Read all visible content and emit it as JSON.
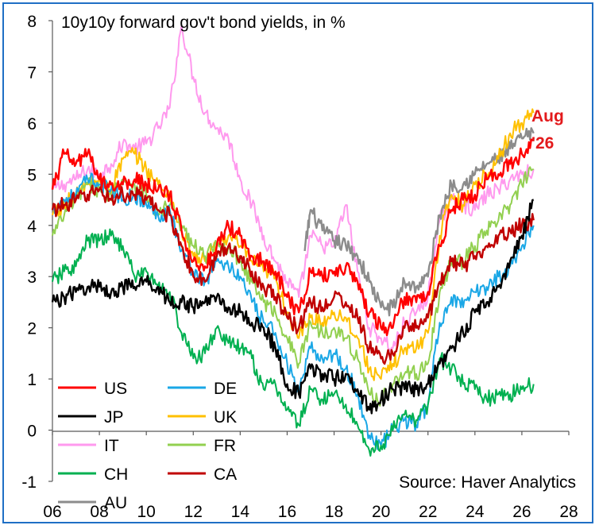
{
  "chart_data": {
    "type": "line",
    "title": "10y10y forward gov't bond yields, in %",
    "xlabel": "",
    "ylabel": "",
    "xlim": [
      2006,
      2028
    ],
    "ylim": [
      -1,
      8
    ],
    "x_ticks": [
      "06",
      "08",
      "10",
      "12",
      "14",
      "16",
      "18",
      "20",
      "22",
      "24",
      "26",
      "28"
    ],
    "y_ticks": [
      "-1",
      "0",
      "1",
      "2",
      "3",
      "4",
      "5",
      "6",
      "7",
      "8"
    ],
    "grid": false,
    "legend_position": "bottom-left",
    "annotation": "Aug '26",
    "annotation_color": "#e31a1c",
    "source": "Source: Haver Analytics",
    "series": [
      {
        "name": "US",
        "color": "#ff0000",
        "width": 2.4,
        "x": [
          2006,
          2006.5,
          2007,
          2007.5,
          2008,
          2008.5,
          2009,
          2009.5,
          2010,
          2010.5,
          2011,
          2011.5,
          2012,
          2012.5,
          2013,
          2013.5,
          2014,
          2014.5,
          2015,
          2015.5,
          2016,
          2016.5,
          2017,
          2017.5,
          2018,
          2018.5,
          2019,
          2019.5,
          2020,
          2020.5,
          2021,
          2021.5,
          2022,
          2022.5,
          2023,
          2023.5,
          2024,
          2024.5,
          2025,
          2025.5,
          2026,
          2026.5
        ],
        "y": [
          4.7,
          5.4,
          5.2,
          5.4,
          4.9,
          4.8,
          4.8,
          4.9,
          4.8,
          4.7,
          4.6,
          3.9,
          3.3,
          3.2,
          3.6,
          4.0,
          3.8,
          3.4,
          3.3,
          3.1,
          2.6,
          2.3,
          3.1,
          3.0,
          3.1,
          3.2,
          2.9,
          2.3,
          2.0,
          2.0,
          2.6,
          2.5,
          2.7,
          3.6,
          4.3,
          4.5,
          4.6,
          4.9,
          5.0,
          5.2,
          5.4,
          5.7
        ]
      },
      {
        "name": "DE",
        "color": "#1aa7e6",
        "width": 2.0,
        "x": [
          2006,
          2006.5,
          2007,
          2007.5,
          2008,
          2008.5,
          2009,
          2009.5,
          2010,
          2010.5,
          2011,
          2011.5,
          2012,
          2012.5,
          2013,
          2013.5,
          2014,
          2014.5,
          2015,
          2015.5,
          2016,
          2016.5,
          2017,
          2017.5,
          2018,
          2018.5,
          2019,
          2019.5,
          2020,
          2020.5,
          2021,
          2021.5,
          2022,
          2022.5,
          2023,
          2023.5,
          2024,
          2024.5,
          2025,
          2025.5,
          2026,
          2026.5
        ],
        "y": [
          4.3,
          4.5,
          4.6,
          4.9,
          4.8,
          4.7,
          4.5,
          4.6,
          4.4,
          4.2,
          4.3,
          3.5,
          3.1,
          2.9,
          3.3,
          3.2,
          3.0,
          2.5,
          2.1,
          1.9,
          1.3,
          0.7,
          1.6,
          1.4,
          1.5,
          1.2,
          0.7,
          -0.1,
          -0.3,
          0.0,
          0.2,
          0.1,
          0.5,
          2.1,
          2.6,
          2.4,
          2.7,
          2.8,
          3.0,
          3.2,
          3.6,
          4.0
        ]
      },
      {
        "name": "JP",
        "color": "#000000",
        "width": 2.4,
        "x": [
          2006,
          2006.5,
          2007,
          2007.5,
          2008,
          2008.5,
          2009,
          2009.5,
          2010,
          2010.5,
          2011,
          2011.5,
          2012,
          2012.5,
          2013,
          2013.5,
          2014,
          2014.5,
          2015,
          2015.5,
          2016,
          2016.5,
          2017,
          2017.5,
          2018,
          2018.5,
          2019,
          2019.5,
          2020,
          2020.5,
          2021,
          2021.5,
          2022,
          2022.5,
          2023,
          2023.5,
          2024,
          2024.5,
          2025,
          2025.5,
          2026,
          2026.5
        ],
        "y": [
          2.5,
          2.6,
          2.7,
          2.8,
          2.8,
          2.7,
          2.8,
          2.8,
          2.9,
          2.8,
          2.5,
          2.5,
          2.4,
          2.5,
          2.6,
          2.4,
          2.3,
          2.1,
          2.0,
          1.6,
          0.9,
          0.7,
          1.2,
          1.1,
          1.0,
          1.1,
          0.8,
          0.4,
          0.6,
          0.8,
          0.8,
          0.8,
          0.9,
          1.3,
          1.6,
          1.9,
          2.3,
          2.5,
          2.8,
          3.3,
          3.8,
          4.5
        ]
      },
      {
        "name": "UK",
        "color": "#ffc000",
        "width": 2.0,
        "x": [
          2006,
          2006.5,
          2007,
          2007.5,
          2008,
          2008.5,
          2009,
          2009.5,
          2010,
          2010.5,
          2011,
          2011.5,
          2012,
          2012.5,
          2013,
          2013.5,
          2014,
          2014.5,
          2015,
          2015.5,
          2016,
          2016.5,
          2017,
          2017.5,
          2018,
          2018.5,
          2019,
          2019.5,
          2020,
          2020.5,
          2021,
          2021.5,
          2022,
          2022.5,
          2023,
          2023.5,
          2024,
          2024.5,
          2025,
          2025.5,
          2026,
          2026.5
        ],
        "y": [
          4.2,
          4.4,
          4.6,
          4.8,
          4.9,
          4.7,
          5.3,
          5.4,
          5.1,
          4.8,
          4.6,
          3.9,
          3.4,
          3.3,
          3.6,
          3.8,
          3.6,
          3.3,
          3.1,
          3.0,
          2.3,
          1.8,
          2.2,
          2.1,
          2.3,
          2.2,
          1.8,
          1.2,
          1.0,
          1.3,
          1.6,
          1.6,
          1.9,
          3.8,
          4.6,
          4.4,
          4.8,
          5.0,
          5.3,
          5.8,
          6.0,
          6.2
        ]
      },
      {
        "name": "IT",
        "color": "#ff99ee",
        "width": 2.0,
        "x": [
          2006,
          2006.5,
          2007,
          2007.5,
          2008,
          2008.5,
          2009,
          2009.5,
          2010,
          2010.5,
          2011,
          2011.5,
          2012,
          2012.5,
          2013,
          2013.5,
          2014,
          2014.5,
          2015,
          2015.5,
          2016,
          2016.5,
          2017,
          2017.5,
          2018,
          2018.5,
          2019,
          2019.5,
          2020,
          2020.5,
          2021,
          2021.5,
          2022,
          2022.5,
          2023,
          2023.5,
          2024,
          2024.5,
          2025,
          2025.5,
          2026,
          2026.5
        ],
        "y": [
          4.7,
          4.8,
          4.9,
          5.1,
          5.0,
          5.2,
          5.6,
          5.5,
          5.6,
          5.9,
          6.3,
          7.9,
          6.9,
          6.2,
          5.9,
          5.7,
          4.9,
          4.4,
          3.8,
          3.3,
          2.9,
          2.6,
          3.8,
          3.6,
          3.6,
          4.4,
          3.1,
          2.0,
          1.8,
          1.6,
          2.1,
          2.3,
          2.6,
          4.1,
          4.5,
          4.4,
          4.3,
          4.6,
          4.7,
          4.9,
          5.0,
          5.1
        ]
      },
      {
        "name": "FR",
        "color": "#92d050",
        "width": 2.0,
        "x": [
          2006,
          2006.5,
          2007,
          2007.5,
          2008,
          2008.5,
          2009,
          2009.5,
          2010,
          2010.5,
          2011,
          2011.5,
          2012,
          2012.5,
          2013,
          2013.5,
          2014,
          2014.5,
          2015,
          2015.5,
          2016,
          2016.5,
          2017,
          2017.5,
          2018,
          2018.5,
          2019,
          2019.5,
          2020,
          2020.5,
          2021,
          2021.5,
          2022,
          2022.5,
          2023,
          2023.5,
          2024,
          2024.5,
          2025,
          2025.5,
          2026,
          2026.5
        ],
        "y": [
          3.8,
          4.2,
          4.5,
          4.8,
          4.7,
          4.6,
          4.9,
          4.8,
          4.6,
          4.2,
          4.4,
          4.0,
          3.6,
          3.4,
          3.6,
          3.6,
          3.3,
          2.9,
          2.5,
          2.3,
          1.8,
          1.3,
          2.1,
          1.9,
          2.0,
          1.8,
          1.4,
          0.7,
          0.6,
          0.9,
          1.1,
          1.1,
          1.3,
          2.7,
          3.3,
          3.3,
          3.6,
          3.9,
          4.1,
          4.4,
          4.8,
          5.1
        ]
      },
      {
        "name": "CH",
        "color": "#00b050",
        "width": 2.0,
        "x": [
          2006,
          2006.5,
          2007,
          2007.5,
          2008,
          2008.5,
          2009,
          2009.5,
          2010,
          2010.5,
          2011,
          2011.5,
          2012,
          2012.5,
          2013,
          2013.5,
          2014,
          2014.5,
          2015,
          2015.5,
          2016,
          2016.5,
          2017,
          2017.5,
          2018,
          2018.5,
          2019,
          2019.5,
          2020,
          2020.5,
          2021,
          2021.5,
          2022,
          2022.5,
          2023,
          2023.5,
          2024,
          2024.5,
          2025,
          2025.5,
          2026,
          2026.5
        ],
        "y": [
          2.9,
          3.1,
          3.2,
          3.7,
          3.7,
          3.8,
          3.6,
          3.0,
          3.1,
          2.8,
          2.7,
          1.9,
          1.4,
          1.5,
          2.0,
          1.7,
          1.6,
          1.4,
          0.8,
          0.9,
          0.4,
          0.1,
          0.8,
          0.6,
          0.7,
          0.5,
          0.1,
          -0.4,
          -0.3,
          0.0,
          0.3,
          0.2,
          0.5,
          1.4,
          1.2,
          0.9,
          0.8,
          0.6,
          0.7,
          0.7,
          0.8,
          0.9
        ]
      },
      {
        "name": "CA",
        "color": "#c00000",
        "width": 2.4,
        "x": [
          2006,
          2006.5,
          2007,
          2007.5,
          2008,
          2008.5,
          2009,
          2009.5,
          2010,
          2010.5,
          2011,
          2011.5,
          2012,
          2012.5,
          2013,
          2013.5,
          2014,
          2014.5,
          2015,
          2015.5,
          2016,
          2016.5,
          2017,
          2017.5,
          2018,
          2018.5,
          2019,
          2019.5,
          2020,
          2020.5,
          2021,
          2021.5,
          2022,
          2022.5,
          2023,
          2023.5,
          2024,
          2024.5,
          2025,
          2025.5,
          2026,
          2026.5
        ],
        "y": [
          4.3,
          4.4,
          4.5,
          4.6,
          4.7,
          4.5,
          4.6,
          4.6,
          4.5,
          4.3,
          4.2,
          3.6,
          3.0,
          2.9,
          3.4,
          3.6,
          3.4,
          3.1,
          2.8,
          2.6,
          2.2,
          2.0,
          2.5,
          2.4,
          2.6,
          2.5,
          2.2,
          1.6,
          1.4,
          1.5,
          2.0,
          2.0,
          2.2,
          2.9,
          3.3,
          3.2,
          3.4,
          3.6,
          3.8,
          3.9,
          4.0,
          4.1
        ]
      },
      {
        "name": "AU",
        "color": "#8c8c8c",
        "width": 2.4,
        "x": [
          2016.75,
          2017,
          2017.5,
          2018,
          2018.5,
          2019,
          2019.5,
          2020,
          2020.5,
          2021,
          2021.5,
          2022,
          2022.5,
          2023,
          2023.5,
          2024,
          2024.5,
          2025,
          2025.5,
          2026,
          2026.5
        ],
        "y": [
          3.5,
          4.3,
          3.9,
          3.7,
          3.6,
          3.4,
          2.9,
          2.4,
          2.4,
          2.9,
          2.8,
          3.0,
          4.2,
          4.8,
          4.8,
          5.0,
          5.2,
          5.3,
          5.5,
          5.7,
          5.8
        ]
      }
    ]
  }
}
